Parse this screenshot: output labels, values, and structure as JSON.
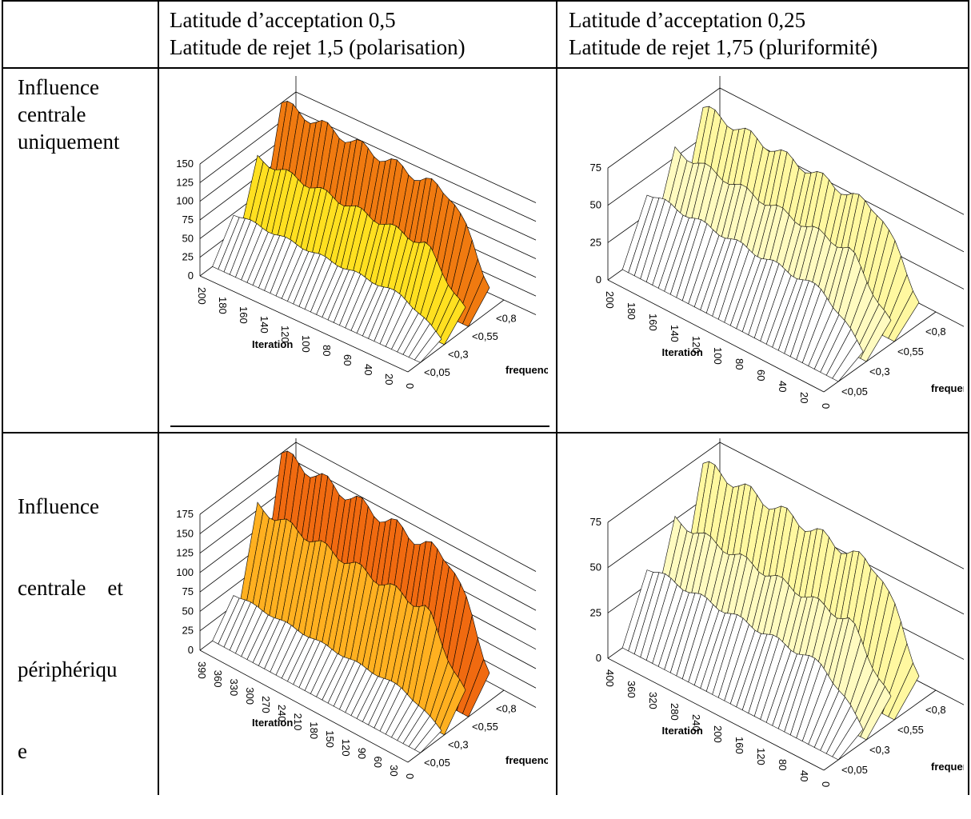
{
  "header": {
    "col1_line1": "Latitude d’acceptation 0,5",
    "col1_line2": "Latitude de rejet 1,5 (polarisation)",
    "col2_line1": "Latitude d’acceptation 0,25",
    "col2_line2": "Latitude de rejet 1,75 (pluriformité)"
  },
  "rows": [
    {
      "label_lines": [
        "Influence",
        "centrale",
        "uniquement"
      ]
    },
    {
      "label_lines": [
        "Influence",
        "centrale    et",
        "périphériqu",
        "e"
      ]
    }
  ],
  "plots": [
    {
      "id": "p11",
      "zticks": [
        "150",
        "125",
        "100",
        "75",
        "50",
        "25",
        "0"
      ],
      "zmax": 150,
      "iter_ticks": [
        "200",
        "180",
        "160",
        "140",
        "120",
        "100",
        "80",
        "60",
        "40",
        "20",
        "0"
      ],
      "freq_ticks": [
        "<0,8",
        "<0,55",
        "<0,3",
        "<0,05"
      ],
      "xlabel": "Iteration",
      "ylabel": "frequency",
      "ridges": [
        {
          "height": 150,
          "color": "#f07a10"
        },
        {
          "height": 100,
          "color": "#ffe020"
        },
        {
          "height": 50,
          "color": "#ffffff"
        }
      ]
    },
    {
      "id": "p12",
      "zticks": [
        "75",
        "50",
        "25",
        "0"
      ],
      "zmax": 75,
      "iter_ticks": [
        "200",
        "180",
        "160",
        "140",
        "120",
        "100",
        "80",
        "60",
        "40",
        "20",
        "0"
      ],
      "freq_ticks": [
        "<0,8",
        "<0,55",
        "<0,3",
        "<0,05"
      ],
      "xlabel": "Iteration",
      "ylabel": "frequency",
      "ridges": [
        {
          "height": 70,
          "color": "#fff8a0"
        },
        {
          "height": 55,
          "color": "#fffbc0"
        },
        {
          "height": 40,
          "color": "#ffffff"
        }
      ]
    },
    {
      "id": "p21",
      "zticks": [
        "175",
        "150",
        "125",
        "100",
        "75",
        "50",
        "25",
        "0"
      ],
      "zmax": 175,
      "iter_ticks": [
        "390",
        "360",
        "330",
        "300",
        "270",
        "240",
        "210",
        "180",
        "150",
        "120",
        "90",
        "60",
        "30",
        "0"
      ],
      "freq_ticks": [
        "<0,8",
        "<0,55",
        "<0,3",
        "<0,05"
      ],
      "xlabel": "Iteration",
      "ylabel": "frequency",
      "ridges": [
        {
          "height": 175,
          "color": "#f06a10"
        },
        {
          "height": 130,
          "color": "#ffb020"
        },
        {
          "height": 40,
          "color": "#ffffff"
        }
      ]
    },
    {
      "id": "p22",
      "zticks": [
        "75",
        "50",
        "25",
        "0"
      ],
      "zmax": 75,
      "iter_ticks": [
        "400",
        "360",
        "320",
        "280",
        "240",
        "200",
        "160",
        "120",
        "80",
        "40",
        "0"
      ],
      "freq_ticks": [
        "<0,8",
        "<0,55",
        "<0,3",
        "<0,05"
      ],
      "xlabel": "Iteration",
      "ylabel": "frequency",
      "ridges": [
        {
          "height": 70,
          "color": "#fff8a0"
        },
        {
          "height": 50,
          "color": "#fffbc0"
        },
        {
          "height": 35,
          "color": "#ffffff"
        }
      ]
    }
  ]
}
